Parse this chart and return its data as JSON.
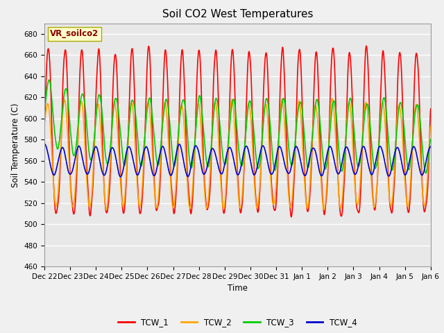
{
  "title": "Soil CO2 West Temperatures",
  "xlabel": "Time",
  "ylabel": "Soil Temperature (C)",
  "ylim": [
    460,
    690
  ],
  "yticks": [
    460,
    480,
    500,
    520,
    540,
    560,
    580,
    600,
    620,
    640,
    660,
    680
  ],
  "fig_facecolor": "#f0f0f0",
  "axes_facecolor": "#e8e8e8",
  "grid_color": "#ffffff",
  "legend_label": "VR_soilco2",
  "legend_label_color": "#8B0000",
  "legend_box_facecolor": "#ffffcc",
  "legend_box_edgecolor": "#aaaa00",
  "series_colors": {
    "TCW_1": "#ff0000",
    "TCW_2": "#ffa500",
    "TCW_3": "#00cc00",
    "TCW_4": "#0000cc"
  },
  "line_width": 1.2,
  "tick_labels": [
    "Dec 22",
    "Dec 23",
    "Dec 24",
    "Dec 25",
    "Dec 26",
    "Dec 27",
    "Dec 28",
    "Dec 29",
    "Dec 30",
    "Dec 31",
    "Jan 1",
    "Jan 2",
    "Jan 3",
    "Jan 4",
    "Jan 5",
    "Jan 6"
  ],
  "n_points": 1500
}
